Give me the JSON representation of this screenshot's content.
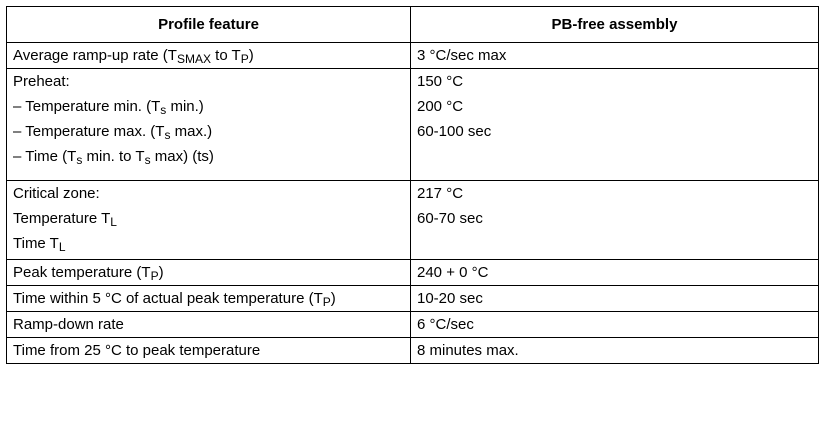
{
  "table": {
    "headers": {
      "feature": "Profile feature",
      "assembly": "PB-free assembly"
    },
    "rows": {
      "ramp_up": {
        "feature_text": "Average ramp-up rate (T",
        "feature_sub1": "SMAX",
        "feature_mid": " to T",
        "feature_sub2": "P",
        "feature_end": ")",
        "value": "3 °C/sec max"
      },
      "preheat": {
        "title": "Preheat:",
        "temp_min_pre": "– Temperature min. (T",
        "temp_min_sub": "s",
        "temp_min_post": " min.)",
        "temp_max_pre": "– Temperature max. (T",
        "temp_max_sub": "s",
        "temp_max_post": " max.)",
        "time_pre": "– Time (T",
        "time_sub1": "s",
        "time_mid": " min. to T",
        "time_sub2": "s",
        "time_post": " max) (ts)",
        "value_min": "150 °C",
        "value_max": "200 °C",
        "value_time": "60-100 sec"
      },
      "critical": {
        "title": "Critical zone:",
        "temp_pre": "Temperature T",
        "temp_sub": "L",
        "time_pre": "Time T",
        "time_sub": "L",
        "value_temp": "217 °C",
        "value_time": "60-70 sec"
      },
      "peak": {
        "feature_pre": "Peak temperature (T",
        "feature_sub": "P",
        "feature_post": ")",
        "value": "240 + 0 °C"
      },
      "within": {
        "feature_pre": "Time within 5 °C of actual peak temperature (T",
        "feature_sub": "P",
        "feature_post": ")",
        "value": "10-20 sec"
      },
      "ramp_down": {
        "feature": "Ramp-down rate",
        "value": "6 °C/sec"
      },
      "time_to_peak": {
        "feature": "Time from 25 °C to peak temperature",
        "value": "8 minutes max."
      }
    }
  }
}
